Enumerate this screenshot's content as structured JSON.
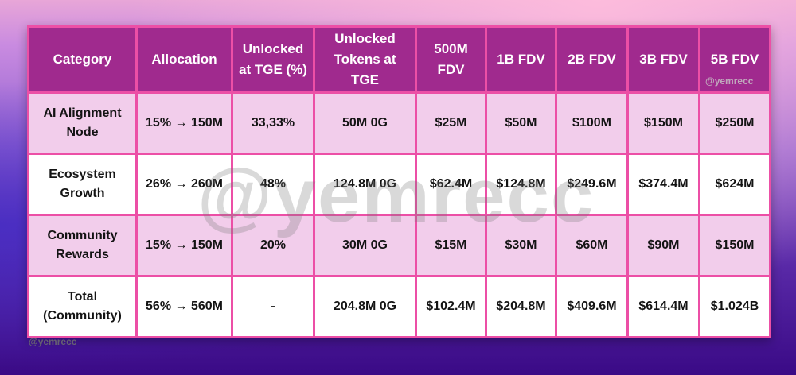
{
  "headers": [
    "Category",
    "Allocation",
    "Unlocked at TGE (%)",
    "Unlocked Tokens at TGE",
    "500M FDV",
    "1B FDV",
    "2B FDV",
    "3B FDV",
    "5B FDV"
  ],
  "rows": [
    [
      "AI Alignment Node",
      "15% → 150M",
      "33,33%",
      "50M 0G",
      "$25M",
      "$50M",
      "$100M",
      "$150M",
      "$250M"
    ],
    [
      "Ecosystem Growth",
      "26% → 260M",
      "48%",
      "124.8M 0G",
      "$62.4M",
      "$124.8M",
      "$249.6M",
      "$374.4M",
      "$624M"
    ],
    [
      "Community Rewards",
      "15% → 150M",
      "20%",
      "30M 0G",
      "$15M",
      "$30M",
      "$60M",
      "$90M",
      "$150M"
    ],
    [
      "Total (Community)",
      "56% → 560M",
      "-",
      "204.8M 0G",
      "$102.4M",
      "$204.8M",
      "$409.6M",
      "$614.4M",
      "$1.024B"
    ]
  ],
  "watermark": "@yemrecc",
  "colors": {
    "header_bg": "#a02a8e",
    "border": "#ec4fa6",
    "alt_row": "#f2cdeb"
  }
}
